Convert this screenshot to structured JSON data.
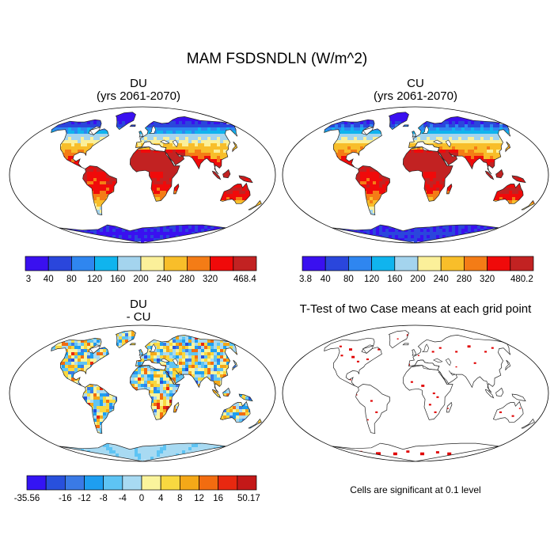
{
  "figure": {
    "title": "MAM FSDSNDLN (W/m^2)"
  },
  "panels": {
    "du": {
      "title": "DU",
      "subtitle": "(yrs 2061-2070)"
    },
    "cu": {
      "title": "CU",
      "subtitle": "(yrs 2061-2070)"
    },
    "diff": {
      "title": "DU",
      "subtitle": "- CU"
    },
    "ttest": {
      "title": "T-Test of two Case means at each grid point",
      "note": "Cells are significant at 0.1 level"
    }
  },
  "colorbars": {
    "du": {
      "labels": [
        "3",
        "40",
        "80",
        "120",
        "160",
        "200",
        "240",
        "280",
        "320",
        "468.4"
      ]
    },
    "cu": {
      "labels": [
        "3.8",
        "40",
        "80",
        "120",
        "160",
        "200",
        "240",
        "280",
        "320",
        "480.2"
      ]
    },
    "diff": {
      "labels": [
        "-35.56",
        "-16",
        "-12",
        "-8",
        "-4",
        "0",
        "4",
        "8",
        "12",
        "16",
        "50.17"
      ]
    }
  },
  "colors": {
    "absolute_scale": [
      "#3a10f0",
      "#2a46dc",
      "#2f86f0",
      "#10b4ee",
      "#a4d4ee",
      "#fbf09a",
      "#f8be2a",
      "#f47c16",
      "#f00a0a",
      "#c22222"
    ],
    "difference_scale": [
      "#3414f4",
      "#2850dc",
      "#3a7ae6",
      "#1e9ef0",
      "#5ec4f4",
      "#a8daf2",
      "#faf49c",
      "#f8d840",
      "#f4a818",
      "#f26c10",
      "#e82810",
      "#c41818"
    ],
    "significant": "#e00000",
    "land_outline": "#222222",
    "ocean": "#ffffff"
  }
}
